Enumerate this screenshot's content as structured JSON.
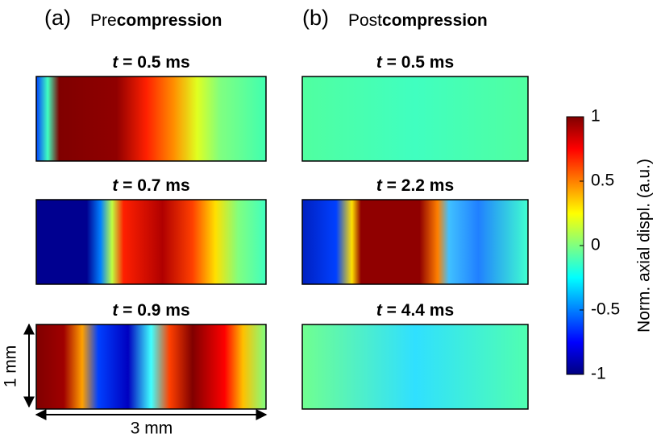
{
  "panels": [
    {
      "label": "(a)",
      "title_prefix": "Pre",
      "title_bold": "compression",
      "frames": [
        {
          "var": "t",
          "text": "= 0.5 ms"
        },
        {
          "var": "t",
          "text": "= 0.7 ms"
        },
        {
          "var": "t",
          "text": "= 0.9 ms"
        }
      ]
    },
    {
      "label": "(b)",
      "title_prefix": "Post",
      "title_bold": "compression",
      "frames": [
        {
          "var": "t",
          "text": "= 0.5 ms"
        },
        {
          "var": "t",
          "text": "= 2.2 ms"
        },
        {
          "var": "t",
          "text": "= 4.4 ms"
        }
      ]
    }
  ],
  "colorbar": {
    "label": "Norm. axial displ. (a.u.)",
    "lim": [
      -1,
      1
    ],
    "ticks": [
      1,
      0.5,
      0,
      -0.5,
      -1
    ]
  },
  "scale_bars": {
    "vertical": "1 mm",
    "horizontal": "3 mm"
  }
}
